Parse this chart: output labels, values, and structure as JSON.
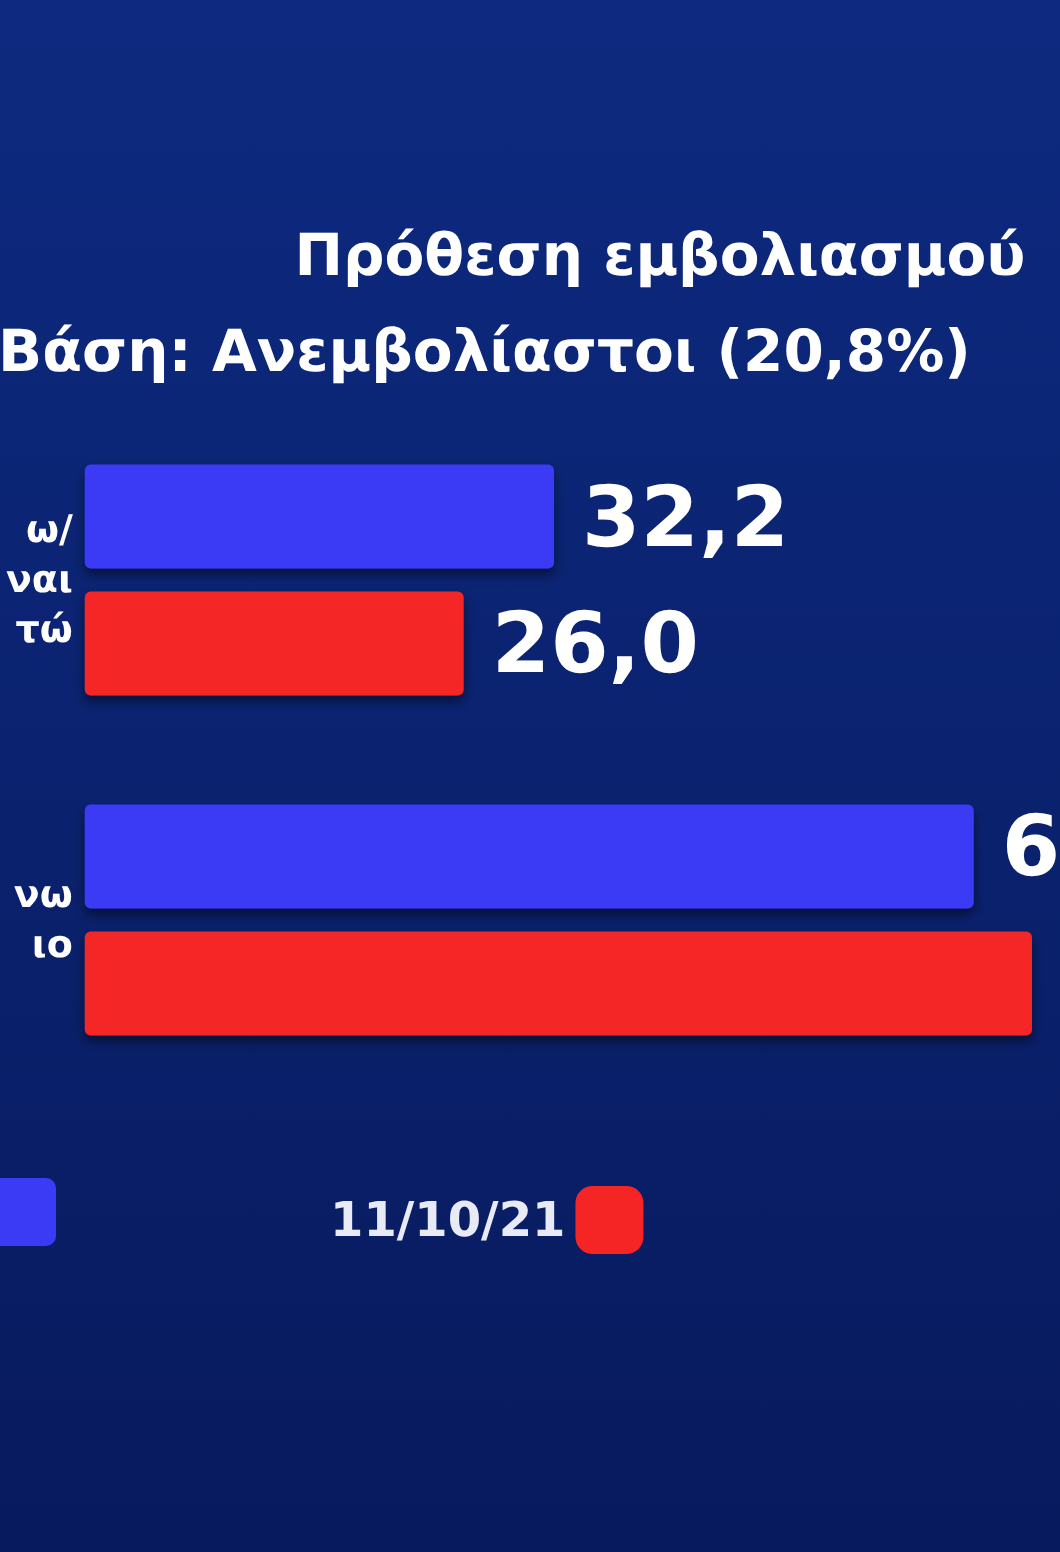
{
  "chart_data": {
    "type": "bar",
    "orientation": "horizontal",
    "title": "Πρόθεση εμβολιασμού",
    "subtitle": "Βάση: Ανεμβολίαστοι (20,8%)",
    "categories": [
      "ω/\nναι\nτώ",
      "νω\nιο"
    ],
    "series": [
      {
        "color": "#3b3bf5",
        "values": [
          32.2,
          61
        ],
        "value_labels": [
          "32,2",
          null
        ]
      },
      {
        "name": "11/10/21",
        "color": "#f52525",
        "values": [
          26.0,
          65
        ],
        "value_labels": [
          "26,0",
          null
        ]
      }
    ],
    "annotations": [
      "6"
    ],
    "legend": "bottom"
  }
}
